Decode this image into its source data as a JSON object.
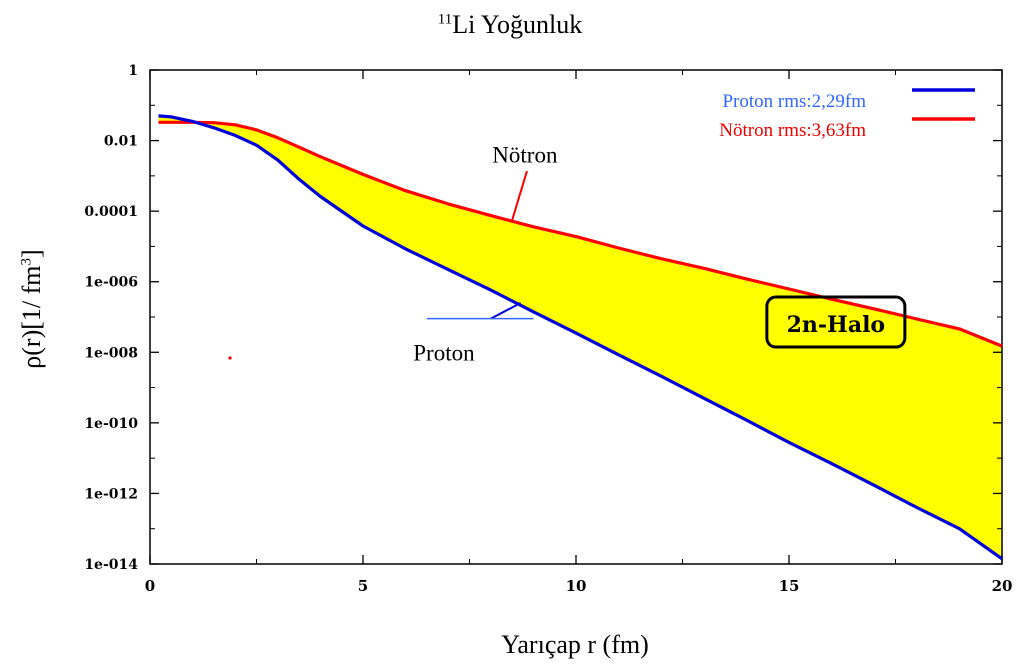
{
  "page": {
    "title_sup": "11",
    "title_main": "Li Yoğunluk",
    "xlabel": "Yarıçap r (fm)",
    "ylabel_main": "ρ(r)[1/ fm",
    "ylabel_sup": "3",
    "ylabel_end": "]"
  },
  "chart_data": {
    "type": "line",
    "title": "11Li Yoğunluk",
    "xlabel": "Yarıçap r (fm)",
    "ylabel": "ρ(r)[1/ fm3]",
    "xlim": [
      0,
      20
    ],
    "ylim": [
      1e-14,
      1
    ],
    "yscale": "log",
    "xticks": [
      0,
      5,
      10,
      15,
      20
    ],
    "xtick_labels": [
      "0",
      "5",
      "10",
      "15",
      "20"
    ],
    "yticks": [
      1,
      0.01,
      0.0001,
      1e-06,
      1e-08,
      1e-10,
      1e-12,
      1e-14
    ],
    "ytick_labels": [
      "1",
      "0.01",
      "0.0001",
      "1e-006",
      "1e-008",
      "1e-010",
      "1e-012",
      "1e-014"
    ],
    "legend_position": "top-right",
    "fill_between": {
      "upper": "Nötron rms:3,63fm",
      "lower": "Proton rms:2,29fm",
      "color": "#ffff00"
    },
    "series": [
      {
        "name": "Proton rms:2,29fm",
        "color": "#0000dd",
        "text_color": "#3366ff",
        "x": [
          0.2,
          0.5,
          1,
          1.5,
          2,
          2.5,
          3,
          3.5,
          4,
          5,
          6,
          7,
          8,
          9,
          10,
          11,
          12,
          13,
          14,
          15,
          16,
          17,
          18,
          19,
          20
        ],
        "y": [
          0.05,
          0.047,
          0.035,
          0.023,
          0.014,
          0.0074,
          0.0028,
          0.0008,
          0.00026,
          3.8e-05,
          8.5e-06,
          2.2e-06,
          5.8e-07,
          1.4e-07,
          3.5e-08,
          8.5e-09,
          2.1e-09,
          5e-10,
          1.2e-10,
          2.8e-11,
          7e-12,
          1.7e-12,
          4e-13,
          1e-13,
          1.4e-14
        ]
      },
      {
        "name": "Nötron rms:3,63fm",
        "color": "#ff0000",
        "text_color": "#ee0000",
        "x": [
          0.2,
          0.5,
          1,
          1.5,
          2,
          2.5,
          3,
          3.5,
          4,
          5,
          6,
          7,
          8,
          9,
          10,
          11,
          12,
          13,
          14,
          15,
          16,
          17,
          18,
          19,
          20
        ],
        "y": [
          0.033,
          0.033,
          0.033,
          0.032,
          0.028,
          0.02,
          0.012,
          0.0065,
          0.0035,
          0.0011,
          0.00038,
          0.00016,
          7.5e-05,
          3.6e-05,
          1.9e-05,
          9e-06,
          4.5e-06,
          2.4e-06,
          1.2e-06,
          6.2e-07,
          3.2e-07,
          1.7e-07,
          8.8e-08,
          4.6e-08,
          1.5e-08
        ]
      }
    ],
    "annotations": [
      {
        "text": "Nötron",
        "x": 8,
        "y": 0.005,
        "points_to": "Nötron rms:3,63fm"
      },
      {
        "text": "Proton",
        "x": 6,
        "y": 1e-08,
        "points_to": "Proton rms:2,29fm"
      },
      {
        "text": "2n-Halo",
        "x": 16.7,
        "y": 8e-08,
        "boxed": true
      }
    ]
  }
}
